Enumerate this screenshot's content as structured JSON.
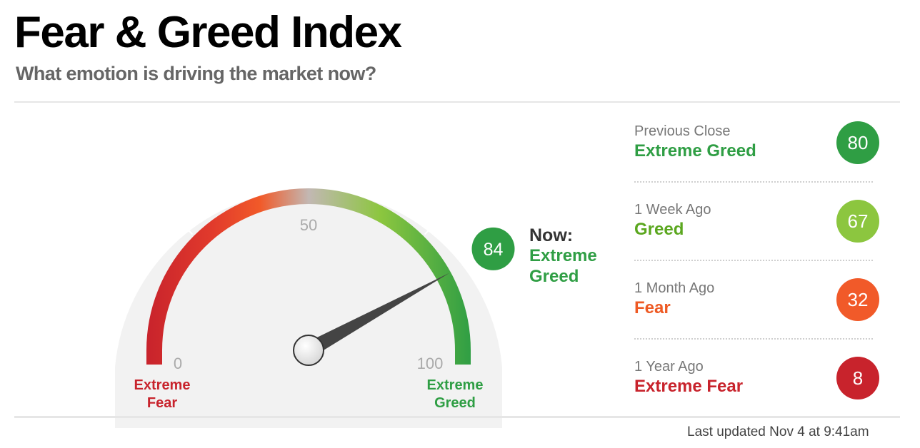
{
  "header": {
    "title": "Fear & Greed Index",
    "subtitle": "What emotion is driving the market now?"
  },
  "gauge": {
    "value": 84,
    "min": 0,
    "max": 100,
    "tick_labels": {
      "min": "0",
      "mid": "50",
      "max": "100"
    },
    "min_label": [
      "Extreme",
      "Fear"
    ],
    "max_label": [
      "Extreme",
      "Greed"
    ],
    "colors": {
      "extreme_fear": "#c8232c",
      "fear": "#f15a29",
      "neutral": "#c2b8b3",
      "greed": "#8cc63f",
      "extreme_greed": "#2f9e44",
      "background": "#f2f2f2"
    }
  },
  "now": {
    "label": "Now:",
    "value": "84",
    "rating": "Extreme Greed",
    "color": "#2f9e44"
  },
  "history": [
    {
      "label": "Previous Close",
      "rating": "Extreme Greed",
      "value": "80",
      "color": "#2f9e44",
      "text_color": "#2f9e44"
    },
    {
      "label": "1 Week Ago",
      "rating": "Greed",
      "value": "67",
      "color": "#8cc63f",
      "text_color": "#5ba71f"
    },
    {
      "label": "1 Month Ago",
      "rating": "Fear",
      "value": "32",
      "color": "#f15a29",
      "text_color": "#ee5a24"
    },
    {
      "label": "1 Year Ago",
      "rating": "Extreme Fear",
      "value": "8",
      "color": "#c8232c",
      "text_color": "#c8232c"
    }
  ],
  "footer": {
    "last_updated": "Last updated Nov 4 at 9:41am"
  }
}
